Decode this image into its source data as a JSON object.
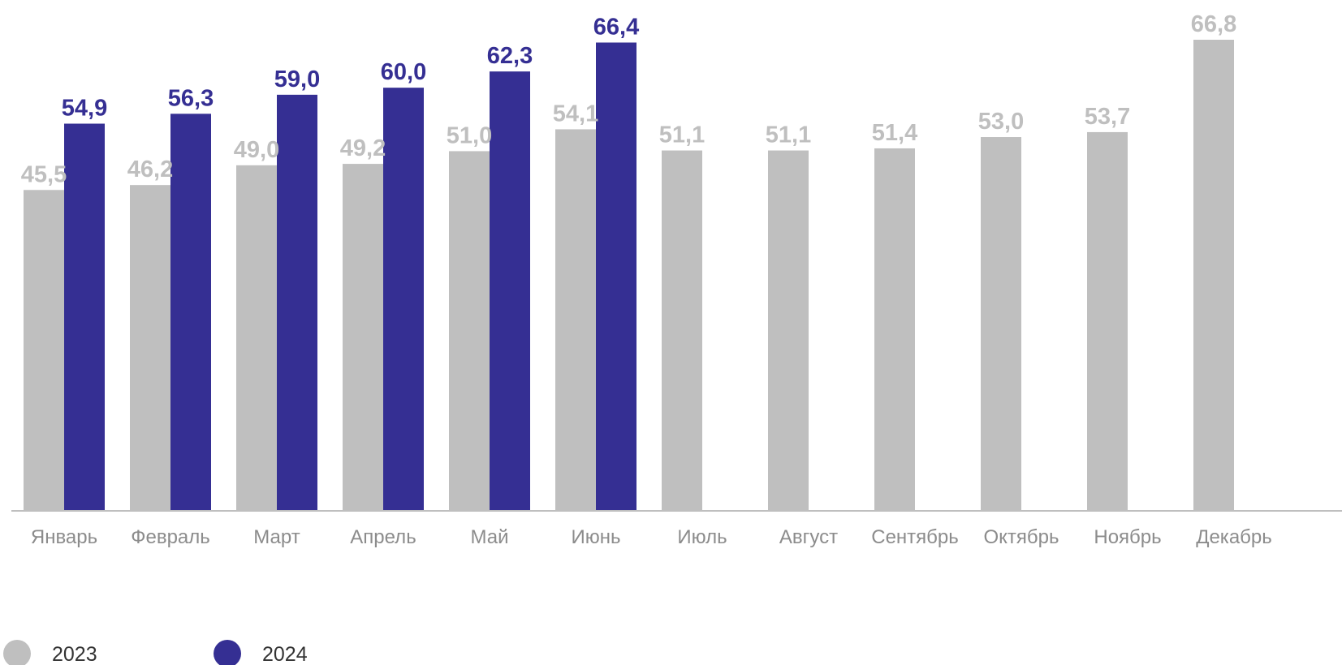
{
  "chart_data": {
    "type": "bar",
    "categories": [
      "Январь",
      "Февраль",
      "Март",
      "Апрель",
      "Май",
      "Июнь",
      "Июль",
      "Август",
      "Сентябрь",
      "Октябрь",
      "Ноябрь",
      "Декабрь"
    ],
    "series": [
      {
        "name": "2023",
        "color": "#bfbfbf",
        "values": [
          45.5,
          46.2,
          49.0,
          49.2,
          51.0,
          54.1,
          51.1,
          51.1,
          51.4,
          53.0,
          53.7,
          66.8
        ],
        "labels": [
          "45,5",
          "46,2",
          "49,0",
          "49,2",
          "51,0",
          "54,1",
          "51,1",
          "51,1",
          "51,4",
          "53,0",
          "53,7",
          "66,8"
        ]
      },
      {
        "name": "2024",
        "color": "#352f93",
        "values": [
          54.9,
          56.3,
          59.0,
          60.0,
          62.3,
          66.4,
          null,
          null,
          null,
          null,
          null,
          null
        ],
        "labels": [
          "54,9",
          "56,3",
          "59,0",
          "60,0",
          "62,3",
          "66,4",
          "",
          "",
          "",
          "",
          "",
          ""
        ]
      }
    ],
    "ylim": [
      0,
      66.8
    ],
    "grid": false,
    "legend_position": "bottom-left",
    "axis_color": "#bfbfbf",
    "tick_label_color": "#8c8c8c"
  }
}
